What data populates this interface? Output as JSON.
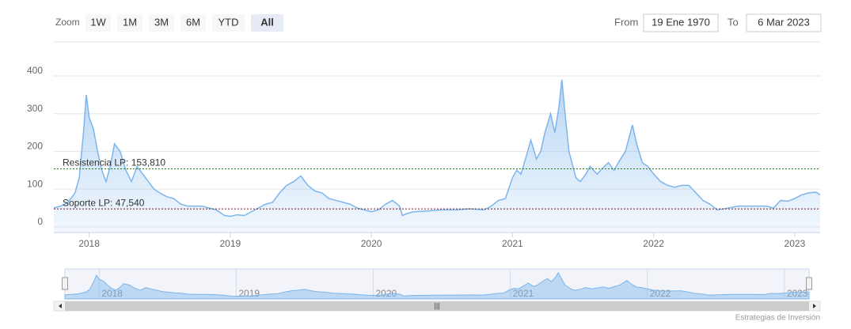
{
  "range_selector": {
    "label": "Zoom",
    "buttons": [
      "1W",
      "1M",
      "3M",
      "6M",
      "YTD",
      "All"
    ],
    "selected": 5,
    "from_label": "From",
    "from": "19 Ene 1970",
    "to_label": "To",
    "to": "6 Mar 2023"
  },
  "credits": "Estrategias de Inversión",
  "chart_data": {
    "type": "area",
    "x": [
      2017.75,
      2017.8,
      2017.85,
      2017.9,
      2017.93,
      2017.96,
      2017.98,
      2018.0,
      2018.03,
      2018.06,
      2018.09,
      2018.12,
      2018.15,
      2018.18,
      2018.22,
      2018.26,
      2018.3,
      2018.34,
      2018.38,
      2018.42,
      2018.46,
      2018.5,
      2018.55,
      2018.6,
      2018.65,
      2018.7,
      2018.8,
      2018.9,
      2018.96,
      2019.0,
      2019.05,
      2019.1,
      2019.15,
      2019.2,
      2019.25,
      2019.3,
      2019.35,
      2019.4,
      2019.45,
      2019.5,
      2019.55,
      2019.6,
      2019.65,
      2019.7,
      2019.75,
      2019.8,
      2019.85,
      2019.9,
      2019.95,
      2020.0,
      2020.05,
      2020.1,
      2020.15,
      2020.2,
      2020.22,
      2020.25,
      2020.3,
      2020.4,
      2020.5,
      2020.6,
      2020.7,
      2020.8,
      2020.85,
      2020.9,
      2020.95,
      2021.0,
      2021.03,
      2021.06,
      2021.1,
      2021.13,
      2021.17,
      2021.2,
      2021.23,
      2021.27,
      2021.3,
      2021.33,
      2021.35,
      2021.37,
      2021.4,
      2021.45,
      2021.48,
      2021.52,
      2021.55,
      2021.6,
      2021.65,
      2021.68,
      2021.72,
      2021.75,
      2021.8,
      2021.85,
      2021.88,
      2021.92,
      2021.96,
      2022.0,
      2022.05,
      2022.1,
      2022.15,
      2022.2,
      2022.25,
      2022.3,
      2022.35,
      2022.4,
      2022.45,
      2022.5,
      2022.6,
      2022.7,
      2022.8,
      2022.85,
      2022.9,
      2022.95,
      2023.0,
      2023.05,
      2023.1,
      2023.15,
      2023.18
    ],
    "values": [
      50,
      55,
      65,
      90,
      130,
      250,
      350,
      290,
      260,
      200,
      150,
      120,
      160,
      220,
      200,
      150,
      120,
      160,
      140,
      120,
      100,
      90,
      80,
      75,
      60,
      55,
      55,
      45,
      30,
      28,
      32,
      30,
      40,
      50,
      60,
      65,
      90,
      110,
      120,
      135,
      110,
      95,
      90,
      75,
      70,
      65,
      60,
      50,
      45,
      40,
      45,
      60,
      70,
      55,
      30,
      35,
      40,
      42,
      45,
      45,
      48,
      45,
      55,
      70,
      75,
      130,
      150,
      140,
      190,
      230,
      180,
      200,
      250,
      300,
      250,
      320,
      390,
      310,
      200,
      130,
      120,
      140,
      160,
      140,
      160,
      170,
      150,
      170,
      200,
      270,
      220,
      170,
      160,
      140,
      120,
      110,
      105,
      110,
      110,
      90,
      70,
      60,
      45,
      48,
      55,
      55,
      55,
      50,
      70,
      68,
      75,
      85,
      90,
      92,
      85
    ],
    "color": "#7cb5ec",
    "xlim": [
      2017.75,
      2023.18
    ],
    "xticks": [
      2018,
      2019,
      2020,
      2021,
      2022,
      2023
    ],
    "ylim": [
      -15,
      400
    ],
    "yticks": [
      0,
      100,
      200,
      300,
      400
    ],
    "grid": true,
    "plot_lines": [
      {
        "label": "Resistencia LP: 153,810",
        "value": 153.81,
        "color": "#1a7f1a"
      },
      {
        "label": "Soporte LP: 47,540",
        "value": 47.54,
        "color": "#7a1a1a"
      }
    ]
  }
}
